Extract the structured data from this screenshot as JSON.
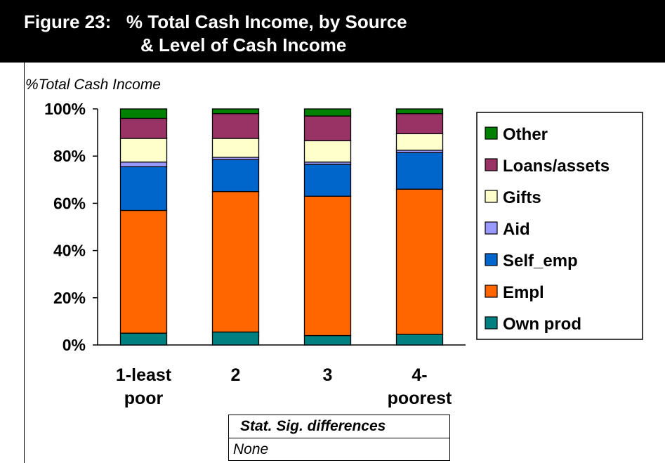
{
  "figure": {
    "title_line1": "Figure 23:   % Total Cash Income, by Source",
    "title_line2": "& Level of Cash Income"
  },
  "chart_data": {
    "type": "bar",
    "stacked": true,
    "ylabel": "%Total Cash Income",
    "ylim": [
      0,
      100
    ],
    "yticks": [
      "0%",
      "20%",
      "40%",
      "60%",
      "80%",
      "100%"
    ],
    "categories": [
      [
        "1-least",
        "poor"
      ],
      [
        "2"
      ],
      [
        "3"
      ],
      [
        "4-",
        "poorest"
      ]
    ],
    "series": [
      {
        "name": "Own prod",
        "color": "#008080",
        "values": [
          5,
          5.5,
          4,
          4.5
        ]
      },
      {
        "name": "Empl",
        "color": "#FF6600",
        "values": [
          52,
          59.5,
          59,
          61.5
        ]
      },
      {
        "name": "Self_emp",
        "color": "#0066CC",
        "values": [
          18.5,
          13.5,
          13.5,
          15.5
        ]
      },
      {
        "name": "Aid",
        "color": "#9999FF",
        "values": [
          2,
          1,
          1,
          1
        ]
      },
      {
        "name": "Gifts",
        "color": "#FFFFCC",
        "values": [
          10,
          8,
          9,
          7
        ]
      },
      {
        "name": "Loans/assets",
        "color": "#993366",
        "values": [
          8.5,
          10.5,
          10.5,
          8.5
        ]
      },
      {
        "name": "Other",
        "color": "#008000",
        "values": [
          4,
          2,
          3,
          2
        ]
      }
    ],
    "legend": {
      "position": "right",
      "order": [
        "Other",
        "Loans/assets",
        "Gifts",
        "Aid",
        "Self_emp",
        "Empl",
        "Own prod"
      ]
    },
    "grid": false
  },
  "significance": {
    "header": "Stat. Sig. differences",
    "value": "None"
  }
}
